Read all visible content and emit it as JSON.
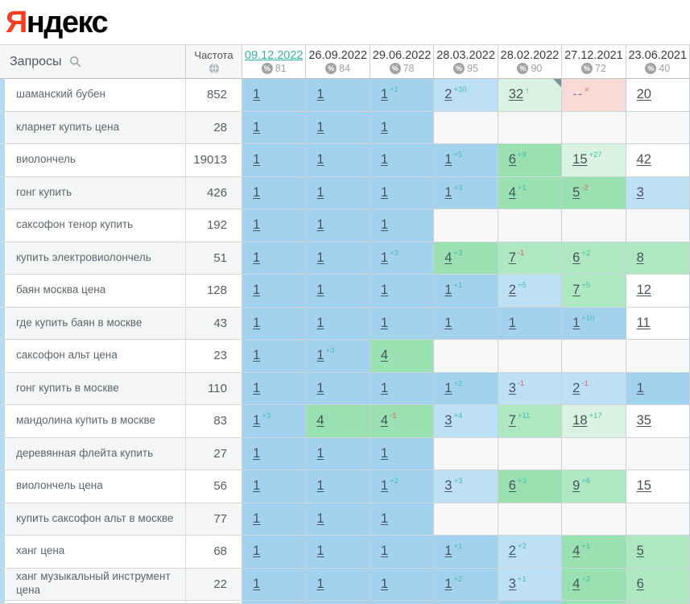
{
  "logo": {
    "first_letter": "Я",
    "rest": "ндекс"
  },
  "header": {
    "queries_label": "Запросы",
    "frequency_label": "Частота",
    "dates": [
      {
        "date": "09.12.2022",
        "percent": "81",
        "active": true
      },
      {
        "date": "26.09.2022",
        "percent": "84",
        "active": false
      },
      {
        "date": "29.06.2022",
        "percent": "78",
        "active": false
      },
      {
        "date": "28.03.2022",
        "percent": "95",
        "active": false
      },
      {
        "date": "28.02.2022",
        "percent": "90",
        "active": false
      },
      {
        "date": "27.12.2021",
        "percent": "72",
        "active": false
      },
      {
        "date": "23.06.2021",
        "percent": "40",
        "active": false
      }
    ]
  },
  "colors": {
    "yandex_red": "#fb3b1d",
    "active_date_teal": "#2eb6a3",
    "change_up_teal": "#43bfae",
    "change_down_red": "#d8695c",
    "band_pos1_blue": "#a3d2ef",
    "band_pos2_3_blue": "#bde0f5",
    "band_pos4_6_green": "#99e1b0",
    "band_pos7_10_green": "#aee7c0",
    "band_pos11_50_green": "#d9f2e1",
    "band_dropped_pink": "#f8dad6",
    "row_marker_blue": "#b5d9f1"
  },
  "rows": [
    {
      "query": "шаманский бубен",
      "frequency": "852",
      "cells": [
        {
          "v": "1",
          "b": "b1"
        },
        {
          "v": "1",
          "b": "b1"
        },
        {
          "v": "1",
          "b": "b1",
          "s": "+1",
          "d": "up"
        },
        {
          "v": "2",
          "b": "b2",
          "s": "+30",
          "d": "up"
        },
        {
          "v": "32",
          "b": "g3",
          "s": "↑",
          "d": "up",
          "corner": true
        },
        {
          "v": "--",
          "b": "pink",
          "s": "×",
          "d": "down",
          "nolink": true
        },
        {
          "v": "20",
          "b": "w"
        }
      ]
    },
    {
      "query": "кларнет купить цена",
      "frequency": "28",
      "cells": [
        {
          "v": "1",
          "b": "b1"
        },
        {
          "v": "1",
          "b": "b1"
        },
        {
          "v": "1",
          "b": "b1"
        },
        {
          "v": "",
          "b": "e"
        },
        {
          "v": "",
          "b": "e"
        },
        {
          "v": "",
          "b": "e"
        },
        {
          "v": "",
          "b": "e"
        }
      ]
    },
    {
      "query": "виолончель",
      "frequency": "19013",
      "cells": [
        {
          "v": "1",
          "b": "b1"
        },
        {
          "v": "1",
          "b": "b1"
        },
        {
          "v": "1",
          "b": "b1"
        },
        {
          "v": "1",
          "b": "b1",
          "s": "+5",
          "d": "up"
        },
        {
          "v": "6",
          "b": "g1",
          "s": "+9",
          "d": "up"
        },
        {
          "v": "15",
          "b": "g3",
          "s": "+27",
          "d": "up"
        },
        {
          "v": "42",
          "b": "w"
        }
      ]
    },
    {
      "query": "гонг купить",
      "frequency": "426",
      "cells": [
        {
          "v": "1",
          "b": "b1"
        },
        {
          "v": "1",
          "b": "b1"
        },
        {
          "v": "1",
          "b": "b1"
        },
        {
          "v": "1",
          "b": "b1",
          "s": "+3",
          "d": "up"
        },
        {
          "v": "4",
          "b": "g1",
          "s": "+1",
          "d": "up"
        },
        {
          "v": "5",
          "b": "g1",
          "s": "-2",
          "d": "down"
        },
        {
          "v": "3",
          "b": "b2"
        }
      ]
    },
    {
      "query": "саксофон тенор купить",
      "frequency": "192",
      "cells": [
        {
          "v": "1",
          "b": "b1"
        },
        {
          "v": "1",
          "b": "b1"
        },
        {
          "v": "1",
          "b": "b1"
        },
        {
          "v": "",
          "b": "e"
        },
        {
          "v": "",
          "b": "e"
        },
        {
          "v": "",
          "b": "e"
        },
        {
          "v": "",
          "b": "e"
        }
      ]
    },
    {
      "query": "купить электровиолончель",
      "frequency": "51",
      "cells": [
        {
          "v": "1",
          "b": "b1"
        },
        {
          "v": "1",
          "b": "b1"
        },
        {
          "v": "1",
          "b": "b1",
          "s": "+3",
          "d": "up"
        },
        {
          "v": "4",
          "b": "g1",
          "s": "+3",
          "d": "up"
        },
        {
          "v": "7",
          "b": "g2",
          "s": "-1",
          "d": "down"
        },
        {
          "v": "6",
          "b": "g2",
          "s": "+2",
          "d": "up"
        },
        {
          "v": "8",
          "b": "g2"
        }
      ]
    },
    {
      "query": "баян москва цена",
      "frequency": "128",
      "cells": [
        {
          "v": "1",
          "b": "b1"
        },
        {
          "v": "1",
          "b": "b1"
        },
        {
          "v": "1",
          "b": "b1"
        },
        {
          "v": "1",
          "b": "b1",
          "s": "+1",
          "d": "up"
        },
        {
          "v": "2",
          "b": "b2",
          "s": "+5",
          "d": "up"
        },
        {
          "v": "7",
          "b": "g2",
          "s": "+5",
          "d": "up"
        },
        {
          "v": "12",
          "b": "w"
        }
      ]
    },
    {
      "query": "где купить баян в москве",
      "frequency": "43",
      "cells": [
        {
          "v": "1",
          "b": "b1"
        },
        {
          "v": "1",
          "b": "b1"
        },
        {
          "v": "1",
          "b": "b1"
        },
        {
          "v": "1",
          "b": "b1"
        },
        {
          "v": "1",
          "b": "b1"
        },
        {
          "v": "1",
          "b": "b1",
          "s": "+10",
          "d": "up"
        },
        {
          "v": "11",
          "b": "w"
        }
      ]
    },
    {
      "query": "саксофон альт цена",
      "frequency": "23",
      "cells": [
        {
          "v": "1",
          "b": "b1"
        },
        {
          "v": "1",
          "b": "b1",
          "s": "+3",
          "d": "up"
        },
        {
          "v": "4",
          "b": "g1"
        },
        {
          "v": "",
          "b": "e"
        },
        {
          "v": "",
          "b": "e"
        },
        {
          "v": "",
          "b": "e"
        },
        {
          "v": "",
          "b": "e"
        }
      ]
    },
    {
      "query": "гонг купить в москве",
      "frequency": "110",
      "cells": [
        {
          "v": "1",
          "b": "b1"
        },
        {
          "v": "1",
          "b": "b1"
        },
        {
          "v": "1",
          "b": "b1"
        },
        {
          "v": "1",
          "b": "b1",
          "s": "+2",
          "d": "up"
        },
        {
          "v": "3",
          "b": "b2",
          "s": "-1",
          "d": "down"
        },
        {
          "v": "2",
          "b": "b2",
          "s": "-1",
          "d": "down"
        },
        {
          "v": "1",
          "b": "b1"
        }
      ]
    },
    {
      "query": "мандолина купить в москве",
      "frequency": "83",
      "cells": [
        {
          "v": "1",
          "b": "b1",
          "s": "+3",
          "d": "up"
        },
        {
          "v": "4",
          "b": "g1"
        },
        {
          "v": "4",
          "b": "g1",
          "s": "-1",
          "d": "down"
        },
        {
          "v": "3",
          "b": "b2",
          "s": "+4",
          "d": "up"
        },
        {
          "v": "7",
          "b": "g2",
          "s": "+11",
          "d": "up"
        },
        {
          "v": "18",
          "b": "g3",
          "s": "+17",
          "d": "up"
        },
        {
          "v": "35",
          "b": "w"
        }
      ]
    },
    {
      "query": "деревянная флейта купить",
      "frequency": "27",
      "cells": [
        {
          "v": "1",
          "b": "b1"
        },
        {
          "v": "1",
          "b": "b1"
        },
        {
          "v": "1",
          "b": "b1"
        },
        {
          "v": "",
          "b": "e"
        },
        {
          "v": "",
          "b": "e"
        },
        {
          "v": "",
          "b": "e"
        },
        {
          "v": "",
          "b": "e"
        }
      ]
    },
    {
      "query": "виолончель цена",
      "frequency": "56",
      "cells": [
        {
          "v": "1",
          "b": "b1"
        },
        {
          "v": "1",
          "b": "b1"
        },
        {
          "v": "1",
          "b": "b1",
          "s": "+2",
          "d": "up"
        },
        {
          "v": "3",
          "b": "b2",
          "s": "+3",
          "d": "up"
        },
        {
          "v": "6",
          "b": "g1",
          "s": "+3",
          "d": "up"
        },
        {
          "v": "9",
          "b": "g2",
          "s": "+6",
          "d": "up"
        },
        {
          "v": "15",
          "b": "w"
        }
      ]
    },
    {
      "query": "купить саксофон альт в москве",
      "frequency": "77",
      "cells": [
        {
          "v": "1",
          "b": "b1"
        },
        {
          "v": "1",
          "b": "b1"
        },
        {
          "v": "1",
          "b": "b1"
        },
        {
          "v": "",
          "b": "e"
        },
        {
          "v": "",
          "b": "e"
        },
        {
          "v": "",
          "b": "e"
        },
        {
          "v": "",
          "b": "e"
        }
      ]
    },
    {
      "query": "ханг цена",
      "frequency": "68",
      "cells": [
        {
          "v": "1",
          "b": "b1"
        },
        {
          "v": "1",
          "b": "b1"
        },
        {
          "v": "1",
          "b": "b1"
        },
        {
          "v": "1",
          "b": "b1",
          "s": "+1",
          "d": "up"
        },
        {
          "v": "2",
          "b": "b2",
          "s": "+2",
          "d": "up"
        },
        {
          "v": "4",
          "b": "g1",
          "s": "+1",
          "d": "up"
        },
        {
          "v": "5",
          "b": "g2"
        }
      ]
    },
    {
      "query": "ханг музыкальный инструмент цена",
      "frequency": "22",
      "cells": [
        {
          "v": "1",
          "b": "b1"
        },
        {
          "v": "1",
          "b": "b1"
        },
        {
          "v": "1",
          "b": "b1"
        },
        {
          "v": "1",
          "b": "b1",
          "s": "+2",
          "d": "up"
        },
        {
          "v": "3",
          "b": "b2",
          "s": "+1",
          "d": "up"
        },
        {
          "v": "4",
          "b": "g1",
          "s": "+2",
          "d": "up"
        },
        {
          "v": "6",
          "b": "g2"
        }
      ]
    }
  ],
  "partial_row_bands": [
    "b1",
    "b1",
    "b1",
    "b1",
    "b1",
    "g1",
    "g2"
  ]
}
